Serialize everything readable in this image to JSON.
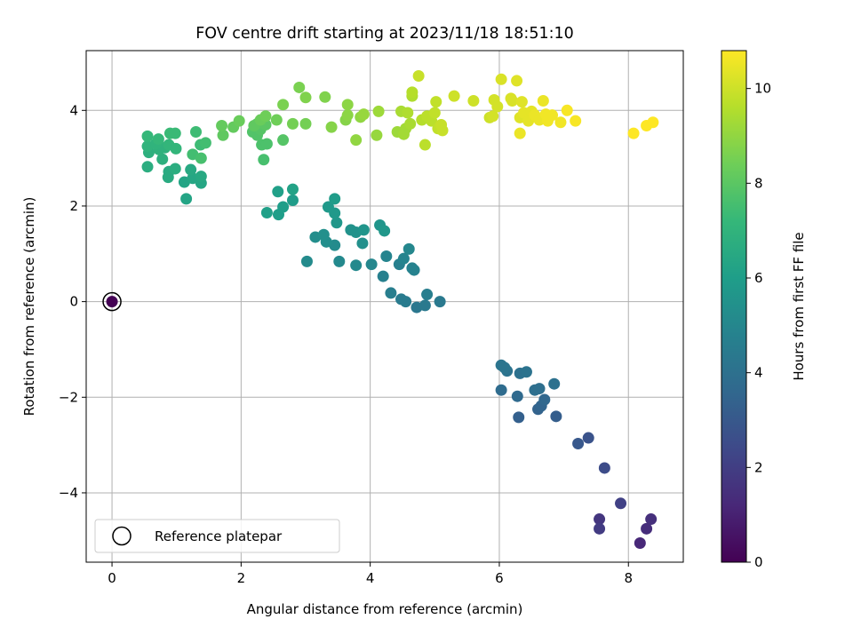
{
  "chart_data": {
    "type": "scatter",
    "title": "FOV centre drift starting at 2023/11/18 18:51:10",
    "xlabel": "Angular distance from reference (arcmin)",
    "ylabel": "Rotation from reference (arcmin)",
    "xlim": [
      -0.4,
      8.85
    ],
    "ylim": [
      -5.45,
      5.25
    ],
    "xticks": [
      0,
      2,
      4,
      6,
      8
    ],
    "yticks": [
      -4,
      -2,
      0,
      2,
      4
    ],
    "xtick_labels": [
      "0",
      "2",
      "4",
      "6",
      "8"
    ],
    "ytick_labels": [
      "−4",
      "−2",
      "0",
      "2",
      "4"
    ],
    "grid": true,
    "legend": {
      "placement": "lower-left",
      "entries": [
        "Reference platepar"
      ]
    },
    "reference_point": {
      "x": 0,
      "y": 0,
      "c": 0
    },
    "colorbar": {
      "label": "Hours from first FF file",
      "colormap": "viridis",
      "range": [
        0,
        10.8
      ],
      "ticks": [
        0,
        2,
        4,
        6,
        8,
        10
      ],
      "tick_labels": [
        "0",
        "2",
        "4",
        "6",
        "8",
        "10"
      ],
      "colors": [
        "#440154",
        "#482878",
        "#3e4989",
        "#31688e",
        "#26828e",
        "#1f9e89",
        "#35b779",
        "#6ece58",
        "#b5de2b",
        "#fde725"
      ]
    },
    "points": [
      {
        "x": 0.0,
        "y": 0.0,
        "c": 0.0
      },
      {
        "x": 8.18,
        "y": -5.05,
        "c": 1.2
      },
      {
        "x": 8.28,
        "y": -4.75,
        "c": 1.4
      },
      {
        "x": 8.35,
        "y": -4.55,
        "c": 1.5
      },
      {
        "x": 7.55,
        "y": -4.55,
        "c": 1.7
      },
      {
        "x": 7.55,
        "y": -4.75,
        "c": 1.9
      },
      {
        "x": 7.88,
        "y": -4.22,
        "c": 2.1
      },
      {
        "x": 7.63,
        "y": -3.48,
        "c": 2.5
      },
      {
        "x": 7.38,
        "y": -2.85,
        "c": 2.8
      },
      {
        "x": 7.22,
        "y": -2.97,
        "c": 3.0
      },
      {
        "x": 6.88,
        "y": -2.4,
        "c": 3.2
      },
      {
        "x": 6.3,
        "y": -2.42,
        "c": 3.3
      },
      {
        "x": 6.6,
        "y": -2.25,
        "c": 3.4
      },
      {
        "x": 6.65,
        "y": -2.18,
        "c": 3.5
      },
      {
        "x": 6.7,
        "y": -2.05,
        "c": 3.6
      },
      {
        "x": 6.28,
        "y": -1.98,
        "c": 3.7
      },
      {
        "x": 6.03,
        "y": -1.85,
        "c": 3.8
      },
      {
        "x": 6.55,
        "y": -1.85,
        "c": 3.9
      },
      {
        "x": 6.62,
        "y": -1.82,
        "c": 3.9
      },
      {
        "x": 6.85,
        "y": -1.72,
        "c": 4.0
      },
      {
        "x": 6.32,
        "y": -1.5,
        "c": 4.0
      },
      {
        "x": 6.42,
        "y": -1.47,
        "c": 4.1
      },
      {
        "x": 6.12,
        "y": -1.45,
        "c": 4.1
      },
      {
        "x": 6.03,
        "y": -1.33,
        "c": 4.2
      },
      {
        "x": 6.08,
        "y": -1.38,
        "c": 4.2
      },
      {
        "x": 4.72,
        "y": -0.12,
        "c": 4.3
      },
      {
        "x": 4.85,
        "y": -0.08,
        "c": 4.4
      },
      {
        "x": 5.08,
        "y": 0.0,
        "c": 4.4
      },
      {
        "x": 4.55,
        "y": 0.0,
        "c": 4.5
      },
      {
        "x": 4.48,
        "y": 0.05,
        "c": 4.5
      },
      {
        "x": 4.88,
        "y": 0.15,
        "c": 4.6
      },
      {
        "x": 4.32,
        "y": 0.18,
        "c": 4.6
      },
      {
        "x": 4.2,
        "y": 0.53,
        "c": 4.7
      },
      {
        "x": 4.45,
        "y": 0.78,
        "c": 4.7
      },
      {
        "x": 4.65,
        "y": 0.7,
        "c": 4.8
      },
      {
        "x": 4.68,
        "y": 0.66,
        "c": 4.8
      },
      {
        "x": 4.52,
        "y": 0.9,
        "c": 4.9
      },
      {
        "x": 4.25,
        "y": 0.95,
        "c": 4.9
      },
      {
        "x": 4.6,
        "y": 1.1,
        "c": 5.0
      },
      {
        "x": 4.02,
        "y": 0.78,
        "c": 5.0
      },
      {
        "x": 3.78,
        "y": 0.76,
        "c": 5.1
      },
      {
        "x": 3.52,
        "y": 0.84,
        "c": 5.1
      },
      {
        "x": 3.02,
        "y": 0.84,
        "c": 5.2
      },
      {
        "x": 3.45,
        "y": 1.18,
        "c": 5.2
      },
      {
        "x": 3.32,
        "y": 1.25,
        "c": 5.3
      },
      {
        "x": 3.15,
        "y": 1.35,
        "c": 5.3
      },
      {
        "x": 3.28,
        "y": 1.4,
        "c": 5.4
      },
      {
        "x": 3.88,
        "y": 1.22,
        "c": 5.4
      },
      {
        "x": 3.7,
        "y": 1.5,
        "c": 5.5
      },
      {
        "x": 3.78,
        "y": 1.45,
        "c": 5.5
      },
      {
        "x": 3.9,
        "y": 1.5,
        "c": 5.6
      },
      {
        "x": 4.15,
        "y": 1.6,
        "c": 5.6
      },
      {
        "x": 4.22,
        "y": 1.48,
        "c": 5.7
      },
      {
        "x": 3.48,
        "y": 1.65,
        "c": 5.7
      },
      {
        "x": 3.45,
        "y": 1.85,
        "c": 5.8
      },
      {
        "x": 3.35,
        "y": 1.98,
        "c": 5.8
      },
      {
        "x": 3.45,
        "y": 2.15,
        "c": 5.9
      },
      {
        "x": 2.8,
        "y": 2.12,
        "c": 5.9
      },
      {
        "x": 2.65,
        "y": 1.98,
        "c": 6.0
      },
      {
        "x": 2.58,
        "y": 1.82,
        "c": 6.0
      },
      {
        "x": 2.4,
        "y": 1.86,
        "c": 6.1
      },
      {
        "x": 2.57,
        "y": 2.3,
        "c": 6.1
      },
      {
        "x": 2.8,
        "y": 2.35,
        "c": 6.2
      },
      {
        "x": 1.15,
        "y": 2.15,
        "c": 6.3
      },
      {
        "x": 1.12,
        "y": 2.5,
        "c": 6.3
      },
      {
        "x": 1.38,
        "y": 2.48,
        "c": 6.4
      },
      {
        "x": 1.25,
        "y": 2.58,
        "c": 6.4
      },
      {
        "x": 1.38,
        "y": 2.62,
        "c": 6.5
      },
      {
        "x": 1.22,
        "y": 2.76,
        "c": 6.5
      },
      {
        "x": 0.87,
        "y": 2.6,
        "c": 6.6
      },
      {
        "x": 0.88,
        "y": 2.72,
        "c": 6.6
      },
      {
        "x": 0.98,
        "y": 2.78,
        "c": 6.7
      },
      {
        "x": 0.55,
        "y": 2.82,
        "c": 6.7
      },
      {
        "x": 0.78,
        "y": 2.98,
        "c": 6.8
      },
      {
        "x": 0.57,
        "y": 3.12,
        "c": 6.8
      },
      {
        "x": 0.73,
        "y": 3.18,
        "c": 6.9
      },
      {
        "x": 0.82,
        "y": 3.22,
        "c": 6.9
      },
      {
        "x": 0.55,
        "y": 3.25,
        "c": 7.0
      },
      {
        "x": 0.68,
        "y": 3.3,
        "c": 7.0
      },
      {
        "x": 0.88,
        "y": 3.28,
        "c": 7.1
      },
      {
        "x": 0.99,
        "y": 3.2,
        "c": 7.1
      },
      {
        "x": 0.72,
        "y": 3.4,
        "c": 7.2
      },
      {
        "x": 0.55,
        "y": 3.46,
        "c": 7.2
      },
      {
        "x": 0.9,
        "y": 3.52,
        "c": 7.3
      },
      {
        "x": 0.98,
        "y": 3.52,
        "c": 7.3
      },
      {
        "x": 1.3,
        "y": 3.55,
        "c": 7.4
      },
      {
        "x": 1.37,
        "y": 3.28,
        "c": 7.4
      },
      {
        "x": 1.45,
        "y": 3.32,
        "c": 7.5
      },
      {
        "x": 1.25,
        "y": 3.08,
        "c": 7.5
      },
      {
        "x": 1.38,
        "y": 3.0,
        "c": 7.6
      },
      {
        "x": 2.35,
        "y": 2.97,
        "c": 7.6
      },
      {
        "x": 2.32,
        "y": 3.28,
        "c": 7.7
      },
      {
        "x": 2.4,
        "y": 3.3,
        "c": 7.7
      },
      {
        "x": 2.25,
        "y": 3.48,
        "c": 7.8
      },
      {
        "x": 2.18,
        "y": 3.55,
        "c": 7.8
      },
      {
        "x": 2.65,
        "y": 3.38,
        "c": 7.9
      },
      {
        "x": 2.3,
        "y": 3.6,
        "c": 7.9
      },
      {
        "x": 2.38,
        "y": 3.7,
        "c": 8.0
      },
      {
        "x": 2.25,
        "y": 3.72,
        "c": 8.0
      },
      {
        "x": 2.2,
        "y": 3.68,
        "c": 8.1
      },
      {
        "x": 1.72,
        "y": 3.48,
        "c": 8.1
      },
      {
        "x": 1.7,
        "y": 3.68,
        "c": 8.2
      },
      {
        "x": 1.88,
        "y": 3.65,
        "c": 8.2
      },
      {
        "x": 1.97,
        "y": 3.78,
        "c": 8.3
      },
      {
        "x": 2.3,
        "y": 3.8,
        "c": 8.3
      },
      {
        "x": 2.38,
        "y": 3.88,
        "c": 8.4
      },
      {
        "x": 2.55,
        "y": 3.8,
        "c": 8.4
      },
      {
        "x": 2.8,
        "y": 3.72,
        "c": 8.5
      },
      {
        "x": 3.0,
        "y": 3.72,
        "c": 8.5
      },
      {
        "x": 2.65,
        "y": 4.12,
        "c": 8.6
      },
      {
        "x": 2.9,
        "y": 4.48,
        "c": 8.6
      },
      {
        "x": 3.0,
        "y": 4.27,
        "c": 8.7
      },
      {
        "x": 3.3,
        "y": 4.28,
        "c": 8.7
      },
      {
        "x": 3.4,
        "y": 3.65,
        "c": 8.8
      },
      {
        "x": 3.62,
        "y": 3.8,
        "c": 8.8
      },
      {
        "x": 3.65,
        "y": 3.9,
        "c": 8.9
      },
      {
        "x": 3.65,
        "y": 4.12,
        "c": 8.9
      },
      {
        "x": 3.78,
        "y": 3.38,
        "c": 9.0
      },
      {
        "x": 3.85,
        "y": 3.86,
        "c": 9.0
      },
      {
        "x": 3.9,
        "y": 3.92,
        "c": 9.1
      },
      {
        "x": 4.1,
        "y": 3.48,
        "c": 9.1
      },
      {
        "x": 4.13,
        "y": 3.98,
        "c": 9.2
      },
      {
        "x": 4.42,
        "y": 3.55,
        "c": 9.2
      },
      {
        "x": 4.52,
        "y": 3.5,
        "c": 9.3
      },
      {
        "x": 4.55,
        "y": 3.62,
        "c": 9.3
      },
      {
        "x": 4.62,
        "y": 3.72,
        "c": 9.4
      },
      {
        "x": 4.48,
        "y": 3.98,
        "c": 9.4
      },
      {
        "x": 4.58,
        "y": 3.95,
        "c": 9.5
      },
      {
        "x": 4.65,
        "y": 4.3,
        "c": 9.5
      },
      {
        "x": 4.65,
        "y": 4.38,
        "c": 9.6
      },
      {
        "x": 4.8,
        "y": 3.8,
        "c": 9.6
      },
      {
        "x": 4.88,
        "y": 3.88,
        "c": 9.7
      },
      {
        "x": 4.85,
        "y": 3.28,
        "c": 9.7
      },
      {
        "x": 4.95,
        "y": 3.78,
        "c": 9.7
      },
      {
        "x": 5.0,
        "y": 3.95,
        "c": 9.8
      },
      {
        "x": 5.02,
        "y": 4.18,
        "c": 9.8
      },
      {
        "x": 5.05,
        "y": 3.62,
        "c": 9.8
      },
      {
        "x": 5.12,
        "y": 3.58,
        "c": 9.9
      },
      {
        "x": 5.1,
        "y": 3.7,
        "c": 9.9
      },
      {
        "x": 4.75,
        "y": 4.72,
        "c": 9.9
      },
      {
        "x": 5.3,
        "y": 4.3,
        "c": 10.0
      },
      {
        "x": 5.6,
        "y": 4.2,
        "c": 10.0
      },
      {
        "x": 5.85,
        "y": 3.85,
        "c": 10.0
      },
      {
        "x": 5.9,
        "y": 3.88,
        "c": 10.1
      },
      {
        "x": 5.92,
        "y": 4.22,
        "c": 10.1
      },
      {
        "x": 5.97,
        "y": 4.08,
        "c": 10.1
      },
      {
        "x": 6.03,
        "y": 4.65,
        "c": 10.2
      },
      {
        "x": 6.18,
        "y": 4.25,
        "c": 10.2
      },
      {
        "x": 6.2,
        "y": 4.2,
        "c": 10.2
      },
      {
        "x": 6.27,
        "y": 4.62,
        "c": 10.3
      },
      {
        "x": 6.35,
        "y": 4.18,
        "c": 10.3
      },
      {
        "x": 6.32,
        "y": 3.85,
        "c": 10.3
      },
      {
        "x": 6.38,
        "y": 3.95,
        "c": 10.4
      },
      {
        "x": 6.45,
        "y": 3.78,
        "c": 10.4
      },
      {
        "x": 6.5,
        "y": 3.98,
        "c": 10.4
      },
      {
        "x": 6.55,
        "y": 3.9,
        "c": 10.5
      },
      {
        "x": 6.32,
        "y": 3.52,
        "c": 10.5
      },
      {
        "x": 6.62,
        "y": 3.8,
        "c": 10.5
      },
      {
        "x": 6.68,
        "y": 4.2,
        "c": 10.5
      },
      {
        "x": 6.72,
        "y": 3.92,
        "c": 10.6
      },
      {
        "x": 6.75,
        "y": 3.78,
        "c": 10.6
      },
      {
        "x": 6.82,
        "y": 3.9,
        "c": 10.6
      },
      {
        "x": 6.95,
        "y": 3.75,
        "c": 10.6
      },
      {
        "x": 7.05,
        "y": 4.0,
        "c": 10.7
      },
      {
        "x": 7.18,
        "y": 3.78,
        "c": 10.7
      },
      {
        "x": 8.08,
        "y": 3.52,
        "c": 10.8
      },
      {
        "x": 8.28,
        "y": 3.68,
        "c": 10.8
      },
      {
        "x": 8.38,
        "y": 3.75,
        "c": 10.8
      }
    ]
  }
}
